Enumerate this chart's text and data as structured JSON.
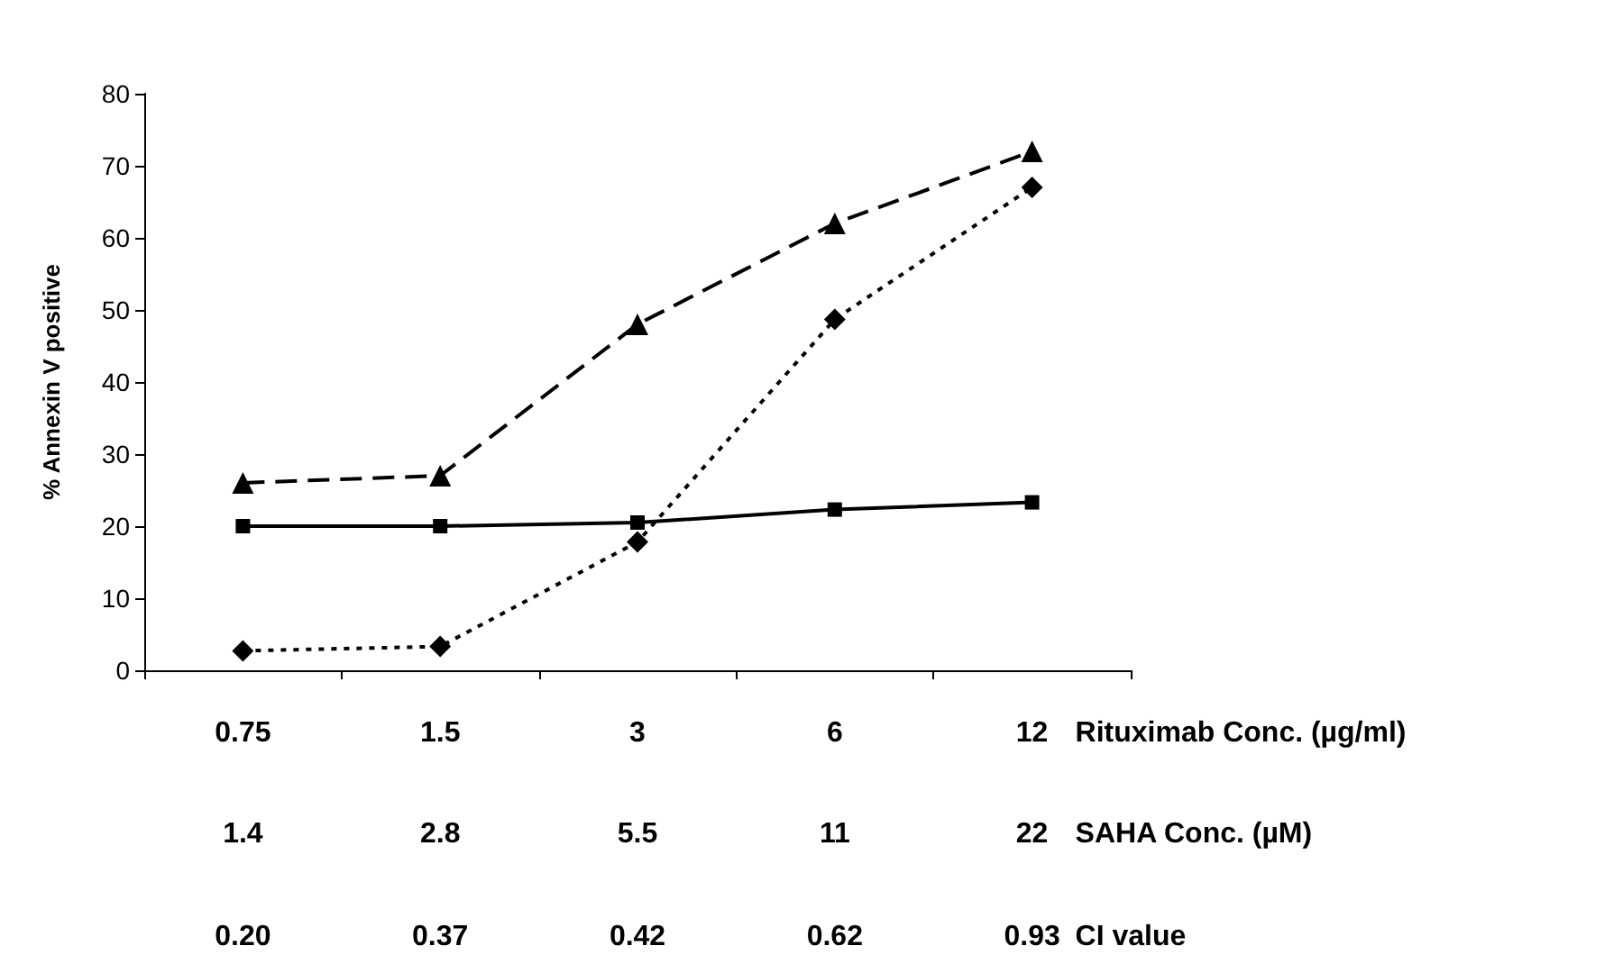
{
  "chart_data": {
    "type": "line",
    "ylabel": "% Annexin V positive",
    "xlabel": "Rituximab Conc. (µg/ml)",
    "categories": [
      "0.75",
      "1.5",
      "3",
      "6",
      "12"
    ],
    "series": [
      {
        "color": "#000000",
        "marker": "triangle",
        "line_style": "dashed",
        "values": [
          26,
          27,
          48,
          62,
          72
        ]
      },
      {
        "color": "#000000",
        "marker": "square",
        "line_style": "solid",
        "values": [
          20,
          20,
          20.5,
          22.3,
          23.3
        ]
      },
      {
        "color": "#000000",
        "marker": "diamond",
        "line_style": "dotted",
        "values": [
          2.7,
          3.3,
          17.8,
          48.7,
          67
        ]
      }
    ],
    "ylim": [
      0,
      80
    ],
    "yticks": [
      0,
      10,
      20,
      30,
      40,
      50,
      60,
      70,
      80
    ],
    "grid": false,
    "annotations": [
      "1.4",
      "2.8",
      "5.5",
      "11",
      "22",
      "SAHA Conc. (µM)",
      "0.20",
      "0.37",
      "0.42",
      "0.62",
      "0.93",
      "CI value"
    ]
  }
}
